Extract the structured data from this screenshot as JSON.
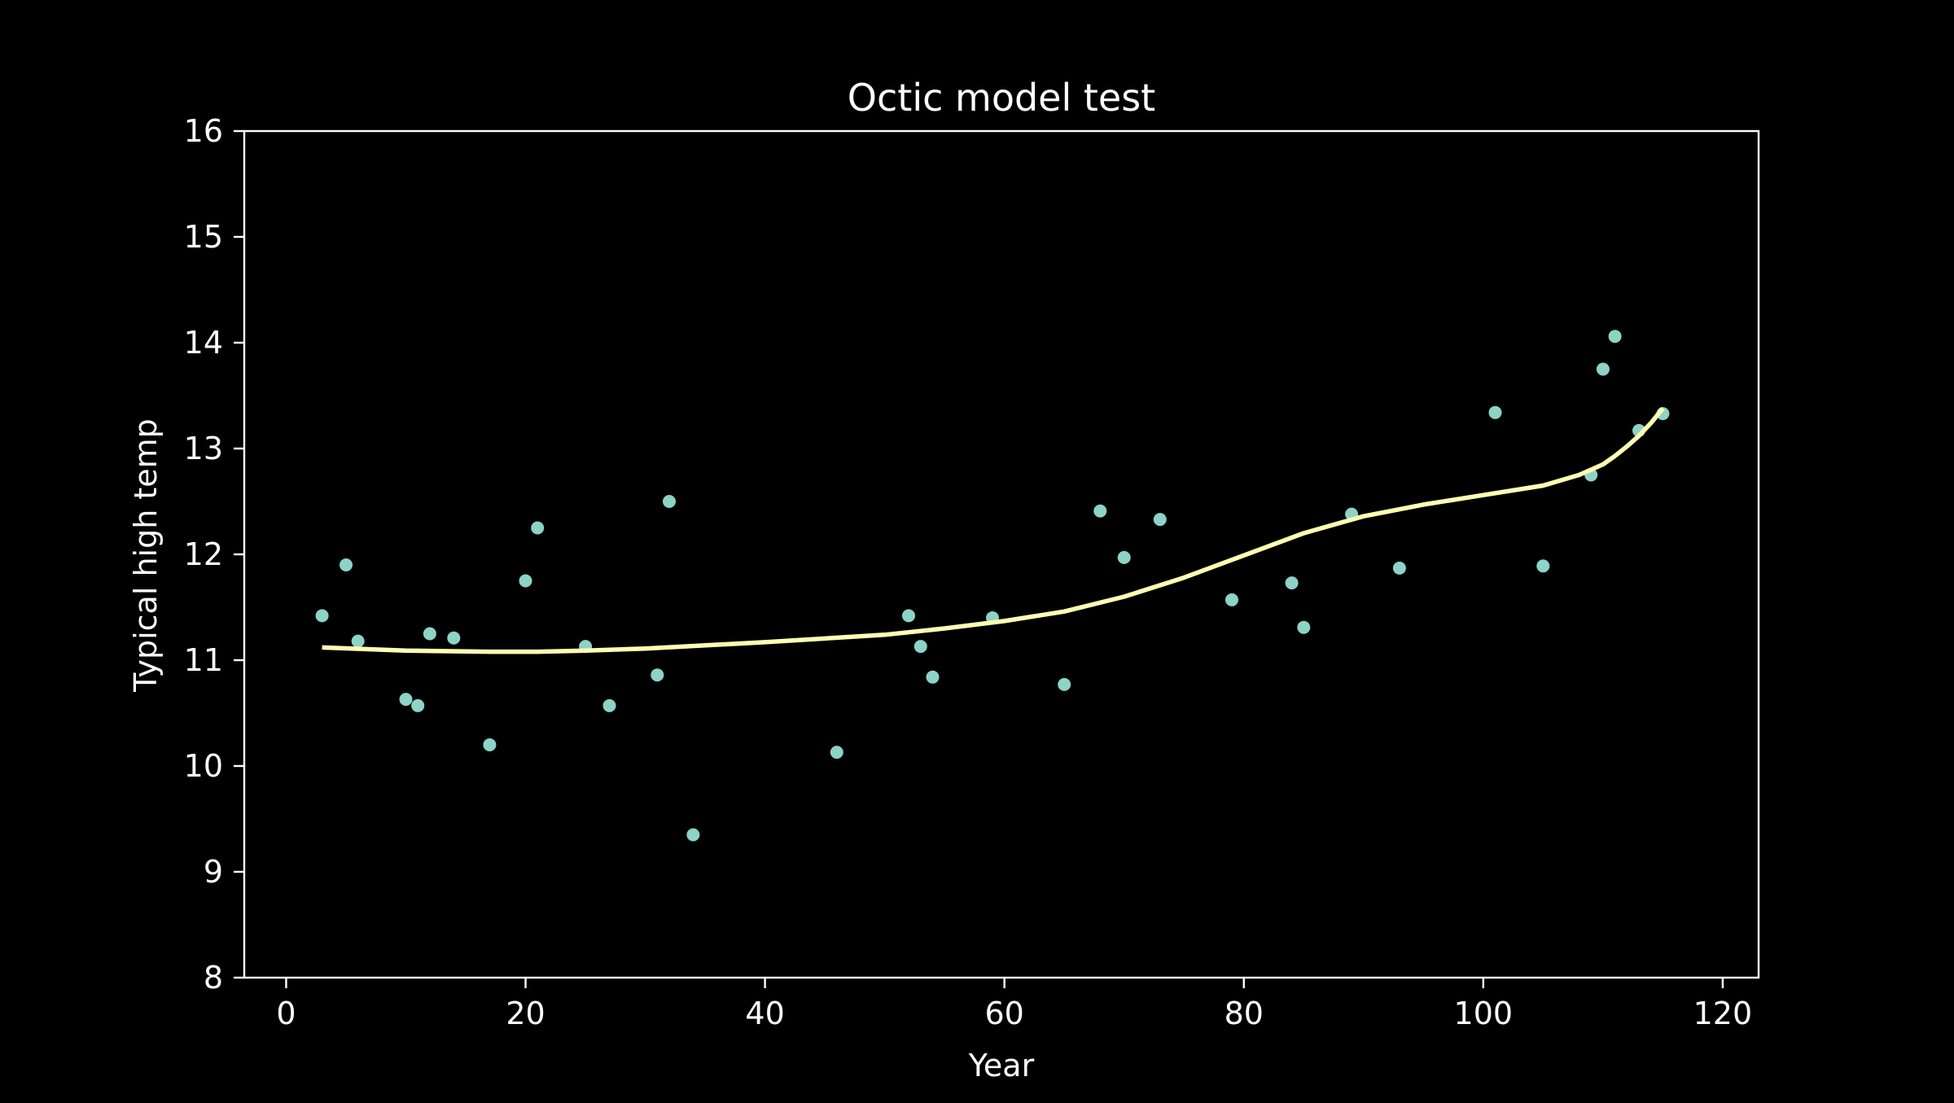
{
  "chart_data": {
    "type": "scatter",
    "title": "Octic model test",
    "xlabel": "Year",
    "ylabel": "Typical high temp",
    "xlim": [
      -3.5,
      123
    ],
    "ylim": [
      8,
      16
    ],
    "xticks": [
      0,
      20,
      40,
      60,
      80,
      100,
      120
    ],
    "yticks": [
      8,
      9,
      10,
      11,
      12,
      13,
      14,
      15,
      16
    ],
    "grid": false,
    "legend": "none",
    "colors": {
      "background": "#000000",
      "axes": "#ffffff",
      "points": "#8dd3c7",
      "fit_line": "#ffffb3"
    },
    "series": [
      {
        "kind": "scatter",
        "x": [
          3,
          5,
          6,
          10,
          11,
          12,
          14,
          17,
          20,
          21,
          25,
          27,
          31,
          32,
          34,
          46,
          52,
          53,
          54,
          59,
          65,
          68,
          70,
          73,
          79,
          84,
          85,
          89,
          93,
          101,
          105,
          109,
          110,
          111,
          113,
          115
        ],
        "y": [
          11.42,
          11.9,
          11.18,
          10.63,
          10.57,
          11.25,
          11.21,
          10.2,
          11.75,
          12.25,
          11.13,
          10.57,
          10.86,
          12.5,
          9.35,
          10.13,
          11.42,
          11.13,
          10.84,
          11.4,
          10.77,
          12.41,
          11.97,
          12.33,
          11.57,
          11.73,
          11.31,
          12.38,
          11.87,
          13.34,
          11.89,
          12.75,
          13.75,
          14.06,
          13.17,
          13.33
        ]
      },
      {
        "kind": "line",
        "x": [
          3,
          10,
          17,
          21,
          25,
          30,
          40,
          50,
          55,
          60,
          65,
          70,
          75,
          80,
          85,
          90,
          95,
          100,
          105,
          108,
          110,
          111,
          112,
          113,
          114,
          115
        ],
        "y": [
          11.12,
          11.09,
          11.08,
          11.08,
          11.09,
          11.11,
          11.17,
          11.24,
          11.3,
          11.37,
          11.46,
          11.6,
          11.78,
          11.99,
          12.2,
          12.36,
          12.47,
          12.56,
          12.65,
          12.75,
          12.85,
          12.93,
          13.02,
          13.12,
          13.24,
          13.38
        ]
      }
    ]
  }
}
